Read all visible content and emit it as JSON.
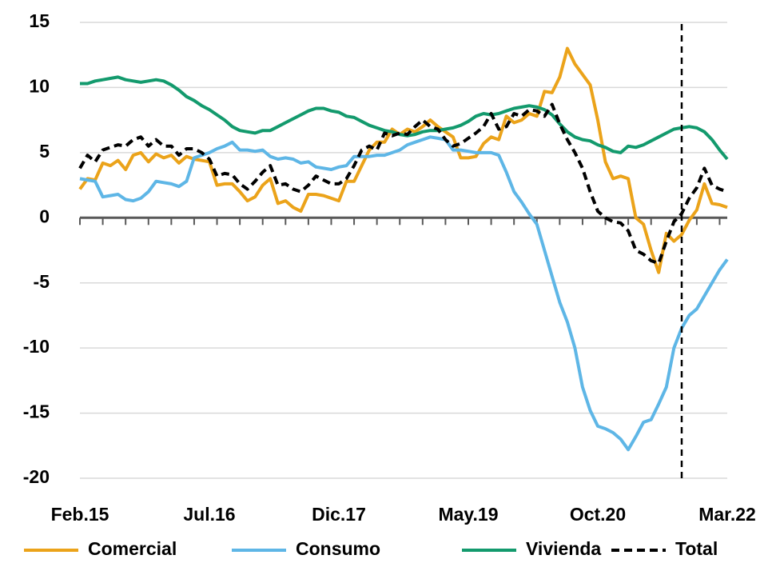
{
  "chart_data": {
    "type": "line",
    "categories": [
      "Feb.15",
      null,
      null,
      null,
      null,
      null,
      null,
      null,
      null,
      null,
      null,
      null,
      null,
      null,
      null,
      null,
      null,
      "Jul.16",
      null,
      null,
      null,
      null,
      null,
      null,
      null,
      null,
      null,
      null,
      null,
      null,
      null,
      null,
      null,
      null,
      "Dic.17",
      null,
      null,
      null,
      null,
      null,
      null,
      null,
      null,
      null,
      null,
      null,
      null,
      null,
      null,
      null,
      null,
      "May.19",
      null,
      null,
      null,
      null,
      null,
      null,
      null,
      null,
      null,
      null,
      null,
      null,
      null,
      null,
      null,
      null,
      "Oct.20",
      null,
      null,
      null,
      null,
      null,
      null,
      null,
      null,
      null,
      null,
      null,
      null,
      null,
      null,
      null,
      null,
      "Mar.22"
    ],
    "series": [
      {
        "name": "Comercial",
        "color": "#eba31a",
        "values": [
          2.2,
          3.0,
          2.9,
          4.2,
          4.0,
          4.4,
          3.7,
          4.8,
          5.0,
          4.3,
          4.9,
          4.6,
          4.8,
          4.2,
          4.7,
          4.5,
          4.4,
          4.3,
          2.5,
          2.6,
          2.6,
          2.0,
          1.3,
          1.6,
          2.5,
          3.0,
          1.1,
          1.3,
          0.8,
          0.5,
          1.8,
          1.8,
          1.7,
          1.5,
          1.3,
          2.8,
          2.8,
          4.0,
          5.2,
          5.8,
          5.8,
          6.8,
          6.4,
          6.8,
          6.6,
          7.0,
          7.5,
          7.0,
          6.6,
          6.2,
          4.6,
          4.6,
          4.7,
          5.7,
          6.2,
          6.0,
          7.8,
          7.3,
          7.5,
          8.0,
          7.8,
          9.7,
          9.6,
          10.8,
          13.0,
          11.8,
          11.0,
          10.2,
          7.5,
          4.3,
          3.0,
          3.2,
          3.0,
          0.0,
          -0.5,
          -2.5,
          -4.2,
          -1.2,
          -1.8,
          -1.3,
          -0.2,
          0.6,
          2.6,
          1.1,
          1.0,
          0.8
        ]
      },
      {
        "name": "Consumo",
        "color": "#5eb6e6",
        "values": [
          3.0,
          2.9,
          2.8,
          1.6,
          1.7,
          1.8,
          1.4,
          1.3,
          1.5,
          2.0,
          2.8,
          2.7,
          2.6,
          2.4,
          2.8,
          4.6,
          4.8,
          5.0,
          5.3,
          5.5,
          5.8,
          5.2,
          5.2,
          5.1,
          5.2,
          4.7,
          4.5,
          4.6,
          4.5,
          4.2,
          4.3,
          3.9,
          3.8,
          3.7,
          3.9,
          4.0,
          4.7,
          4.7,
          4.7,
          4.8,
          4.8,
          5.0,
          5.2,
          5.6,
          5.8,
          6.0,
          6.2,
          6.1,
          6.0,
          5.2,
          5.2,
          5.1,
          5.0,
          5.0,
          5.0,
          4.8,
          3.5,
          2.0,
          1.2,
          0.3,
          -0.5,
          -2.5,
          -4.5,
          -6.5,
          -8.0,
          -10.0,
          -13.0,
          -14.8,
          -16.0,
          -16.2,
          -16.5,
          -17.0,
          -17.8,
          -16.8,
          -15.7,
          -15.5,
          -14.3,
          -13.0,
          -10.0,
          -8.5,
          -7.5,
          -7.0,
          -6.0,
          -5.0,
          -4.0,
          -3.2
        ]
      },
      {
        "name": "Vivienda",
        "color": "#139a6d",
        "values": [
          10.3,
          10.3,
          10.5,
          10.6,
          10.7,
          10.8,
          10.6,
          10.5,
          10.4,
          10.5,
          10.6,
          10.5,
          10.2,
          9.8,
          9.3,
          9.0,
          8.6,
          8.3,
          7.9,
          7.5,
          7.0,
          6.7,
          6.6,
          6.5,
          6.7,
          6.7,
          7.0,
          7.3,
          7.6,
          7.9,
          8.2,
          8.4,
          8.4,
          8.2,
          8.1,
          7.8,
          7.7,
          7.4,
          7.1,
          6.9,
          6.7,
          6.6,
          6.4,
          6.3,
          6.4,
          6.6,
          6.7,
          6.7,
          6.8,
          6.9,
          7.1,
          7.4,
          7.8,
          8.0,
          7.9,
          8.0,
          8.2,
          8.4,
          8.5,
          8.6,
          8.5,
          8.3,
          7.9,
          7.2,
          6.6,
          6.2,
          6.0,
          5.9,
          5.6,
          5.4,
          5.1,
          5.0,
          5.5,
          5.4,
          5.6,
          5.9,
          6.2,
          6.5,
          6.8,
          6.9,
          7.0,
          6.9,
          6.6,
          6.0,
          5.2,
          4.5
        ]
      },
      {
        "name": "Total",
        "color": "#000000",
        "dashed": true,
        "values": [
          3.8,
          4.8,
          4.3,
          5.2,
          5.4,
          5.6,
          5.5,
          6.0,
          6.2,
          5.5,
          6.0,
          5.5,
          5.5,
          4.8,
          5.3,
          5.3,
          5.0,
          4.5,
          3.2,
          3.4,
          3.3,
          2.6,
          2.2,
          2.8,
          3.5,
          4.0,
          2.5,
          2.6,
          2.2,
          2.0,
          2.5,
          3.2,
          2.9,
          2.6,
          2.6,
          3.0,
          4.0,
          5.2,
          5.5,
          5.2,
          6.5,
          6.3,
          6.5,
          6.4,
          7.0,
          7.5,
          7.0,
          6.8,
          6.0,
          5.5,
          5.7,
          6.1,
          6.5,
          7.0,
          8.0,
          6.8,
          7.0,
          8.0,
          7.8,
          8.3,
          8.2,
          7.8,
          8.7,
          7.2,
          6.0,
          5.0,
          3.8,
          2.0,
          0.5,
          0.0,
          -0.3,
          -0.4,
          -1.0,
          -2.5,
          -2.8,
          -3.3,
          -3.5,
          -1.8,
          -0.3,
          0.3,
          1.5,
          2.3,
          3.8,
          2.5,
          2.2,
          2.0
        ]
      }
    ],
    "ylim": [
      -20,
      15
    ],
    "yticks": [
      -20,
      -15,
      -10,
      -5,
      0,
      5,
      10,
      15
    ],
    "grid": true,
    "legend": "bottom"
  }
}
